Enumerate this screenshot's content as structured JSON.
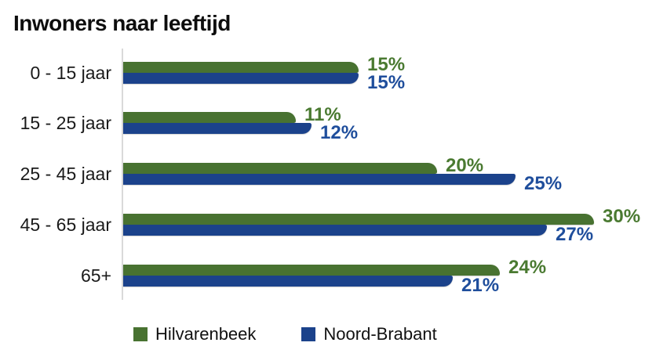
{
  "title": "Inwoners naar leeftijd",
  "colors": {
    "hilvarenbeek_bar": "#487231",
    "hilvarenbeek_label": "#4a7a31",
    "noord_brabant_bar": "#1b428b",
    "noord_brabant_label": "#1f4e9c",
    "axis_line": "#d9d9d9",
    "title_text": "#0d0d0d",
    "category_text": "#1a1a1a",
    "background": "#ffffff"
  },
  "chart_data": {
    "type": "bar",
    "orientation": "horizontal",
    "title": "Inwoners naar leeftijd",
    "categories": [
      "0 - 15 jaar",
      "15 - 25 jaar",
      "25 - 45 jaar",
      "45 - 65 jaar",
      "65+"
    ],
    "series": [
      {
        "name": "Hilvarenbeek",
        "color": "#487231",
        "label_color": "#4a7a31",
        "values": [
          15,
          11,
          20,
          30,
          24
        ],
        "labels": [
          "15%",
          "11%",
          "20%",
          "30%",
          "24%"
        ]
      },
      {
        "name": "Noord-Brabant",
        "color": "#1b428b",
        "label_color": "#1f4e9c",
        "values": [
          15,
          12,
          25,
          27,
          21
        ],
        "labels": [
          "15%",
          "12%",
          "25%",
          "27%",
          "21%"
        ]
      }
    ],
    "value_unit": "%",
    "xlim": [
      0,
      33
    ],
    "grid": false,
    "legend_position": "bottom",
    "data_labels": true
  },
  "legend": {
    "items": [
      {
        "label": "Hilvarenbeek",
        "color": "#487231"
      },
      {
        "label": "Noord-Brabant",
        "color": "#1b428b"
      }
    ]
  }
}
